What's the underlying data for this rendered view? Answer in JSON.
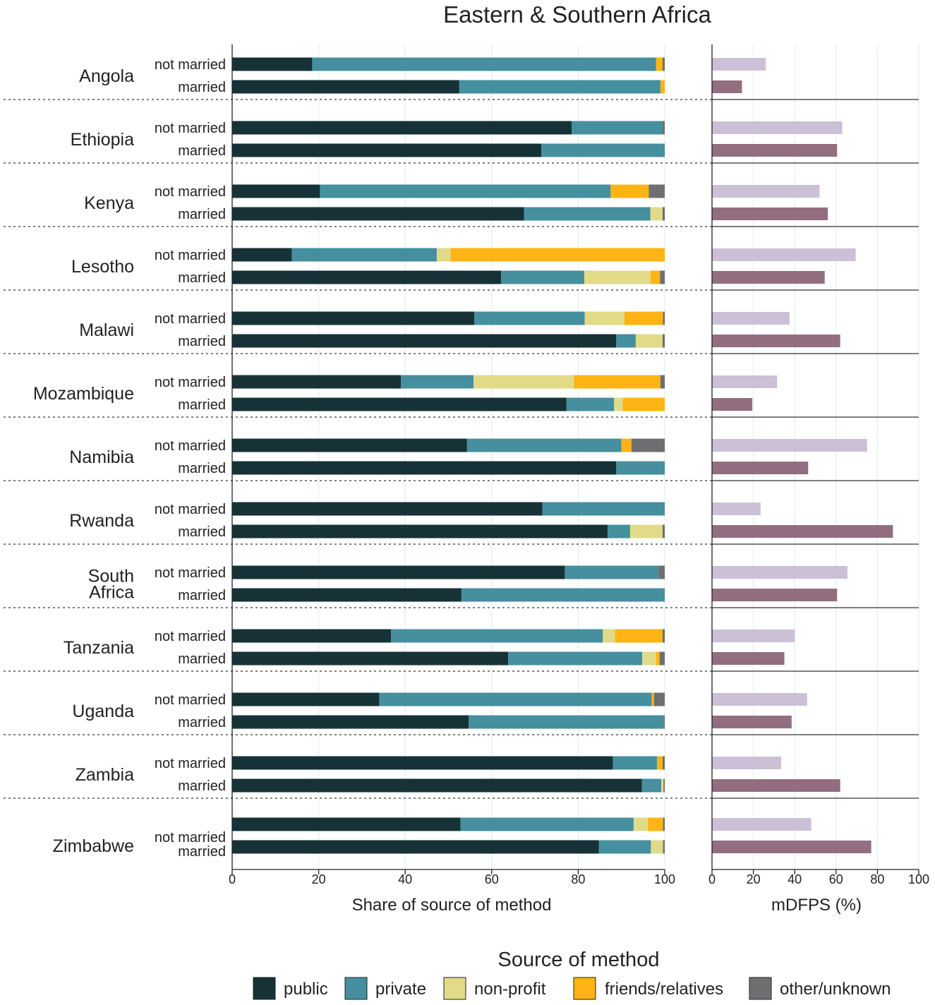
{
  "chart_data": {
    "type": "bar",
    "title": "Eastern & Southern Africa",
    "left_panel": {
      "xlabel": "Share of source of method",
      "xlim": [
        0,
        100
      ],
      "xticks": [
        "0",
        "20",
        "40",
        "60",
        "80",
        "100"
      ],
      "stacked": true
    },
    "right_panel": {
      "xlabel": "mDFPS (%)",
      "xlim": [
        0,
        100
      ],
      "xticks": [
        "0",
        "20",
        "40",
        "60",
        "80",
        "100"
      ]
    },
    "legend": {
      "title": "Source of method",
      "position": "bottom",
      "items": [
        {
          "label": "public",
          "color": "#163237"
        },
        {
          "label": "private",
          "color": "#458f9f"
        },
        {
          "label": "non-profit",
          "color": "#e1db88"
        },
        {
          "label": "friends/relatives",
          "color": "#fdb414"
        },
        {
          "label": "other/unknown",
          "color": "#6f6f72"
        }
      ]
    },
    "mdfps_colors": {
      "not married": "#cbc0d6",
      "married": "#926e80"
    },
    "statuses": [
      "not married",
      "married"
    ],
    "countries": [
      {
        "name": "Angola",
        "rows": [
          {
            "status": "not married",
            "shares": [
              18.5,
              79.5,
              0,
              1.5,
              0.5
            ],
            "mdfps": 26
          },
          {
            "status": "married",
            "shares": [
              52.5,
              46.5,
              0,
              1,
              0
            ],
            "mdfps": 14.5
          }
        ]
      },
      {
        "name": "Ethiopia",
        "rows": [
          {
            "status": "not married",
            "shares": [
              78.5,
              21,
              0,
              0,
              0.5
            ],
            "mdfps": 63
          },
          {
            "status": "married",
            "shares": [
              71.5,
              28.5,
              0,
              0,
              0
            ],
            "mdfps": 60.5
          }
        ]
      },
      {
        "name": "Kenya",
        "rows": [
          {
            "status": "not married",
            "shares": [
              20.3,
              67.2,
              0,
              8.8,
              3.7
            ],
            "mdfps": 52
          },
          {
            "status": "married",
            "shares": [
              67.5,
              29.2,
              2.8,
              0,
              0.5
            ],
            "mdfps": 56
          }
        ]
      },
      {
        "name": "Lesotho",
        "rows": [
          {
            "status": "not married",
            "shares": [
              13.8,
              33.5,
              3.2,
              49.5,
              0
            ],
            "mdfps": 69.5
          },
          {
            "status": "married",
            "shares": [
              62.2,
              19.2,
              15.3,
              2.2,
              1.1
            ],
            "mdfps": 54.5
          }
        ]
      },
      {
        "name": "Malawi",
        "rows": [
          {
            "status": "not married",
            "shares": [
              56,
              25.5,
              9.2,
              8.9,
              0.4
            ],
            "mdfps": 37.5
          },
          {
            "status": "married",
            "shares": [
              88.8,
              4.5,
              6.2,
              0,
              0.5
            ],
            "mdfps": 62
          }
        ]
      },
      {
        "name": "Mozambique",
        "rows": [
          {
            "status": "not married",
            "shares": [
              39,
              16.8,
              23.2,
              20,
              1
            ],
            "mdfps": 31.5
          },
          {
            "status": "married",
            "shares": [
              77.3,
              11,
              2,
              9.7,
              0
            ],
            "mdfps": 19.5
          }
        ]
      },
      {
        "name": "Namibia",
        "rows": [
          {
            "status": "not married",
            "shares": [
              54.3,
              35.7,
              0,
              2.3,
              7.7
            ],
            "mdfps": 75
          },
          {
            "status": "married",
            "shares": [
              88.8,
              11.2,
              0,
              0,
              0
            ],
            "mdfps": 46.5
          }
        ]
      },
      {
        "name": "Rwanda",
        "rows": [
          {
            "status": "not married",
            "shares": [
              71.7,
              28.3,
              0,
              0,
              0
            ],
            "mdfps": 23.5
          },
          {
            "status": "married",
            "shares": [
              86.8,
              5.2,
              7.5,
              0,
              0.5
            ],
            "mdfps": 87.5
          }
        ]
      },
      {
        "name": "South Africa",
        "rows": [
          {
            "status": "not married",
            "shares": [
              76.9,
              21.6,
              0,
              0,
              1.5
            ],
            "mdfps": 65.5
          },
          {
            "status": "married",
            "shares": [
              53,
              47,
              0,
              0,
              0
            ],
            "mdfps": 60.5
          }
        ]
      },
      {
        "name": "Tanzania",
        "rows": [
          {
            "status": "not married",
            "shares": [
              36.7,
              49,
              2.8,
              11,
              0.5
            ],
            "mdfps": 40
          },
          {
            "status": "married",
            "shares": [
              63.8,
              31,
              3.2,
              0.8,
              1.2
            ],
            "mdfps": 35
          }
        ]
      },
      {
        "name": "Uganda",
        "rows": [
          {
            "status": "not married",
            "shares": [
              34,
              63,
              0,
              0.5,
              2.5
            ],
            "mdfps": 46
          },
          {
            "status": "married",
            "shares": [
              54.7,
              45,
              0,
              0,
              0.3
            ],
            "mdfps": 38.5
          }
        ]
      },
      {
        "name": "Zambia",
        "rows": [
          {
            "status": "not married",
            "shares": [
              88,
              10.2,
              0,
              1.3,
              0.5
            ],
            "mdfps": 33.5
          },
          {
            "status": "married",
            "shares": [
              94.7,
              4.5,
              0.5,
              0,
              0.3
            ],
            "mdfps": 62
          }
        ]
      },
      {
        "name": "Zimbabwe",
        "rows": [
          {
            "status": "not married",
            "shares": [
              52.8,
              40,
              3.3,
              3.5,
              0.4
            ],
            "mdfps": 48
          },
          {
            "status": "married",
            "shares": [
              84.8,
              12,
              2.8,
              0,
              0.4
            ],
            "mdfps": 77
          }
        ]
      }
    ]
  }
}
